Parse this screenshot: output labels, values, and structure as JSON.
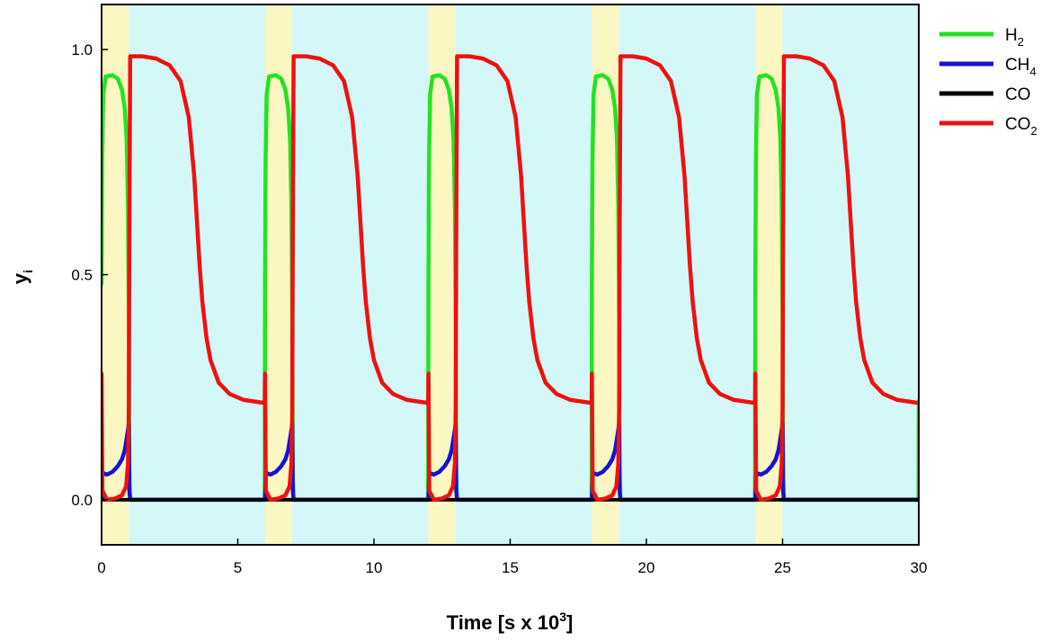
{
  "chart_data": {
    "type": "line",
    "title": "",
    "xlabel": {
      "base": "Time [s x 10",
      "sup": "3",
      "end": "]"
    },
    "ylabel": {
      "base": "y",
      "sub": "i"
    },
    "xlim": [
      0,
      30
    ],
    "ylim": [
      -0.1,
      1.1
    ],
    "x_ticks": [
      0,
      5,
      10,
      15,
      20,
      25,
      30
    ],
    "x_tick_labels": [
      "0",
      "5",
      "10",
      "15",
      "20",
      "25",
      "30"
    ],
    "y_ticks": [
      0.0,
      0.5,
      1.0
    ],
    "y_tick_labels": [
      "0.0",
      "0.5",
      "1.0"
    ],
    "grid": false,
    "legend_position": "right",
    "background_color": "#d4f7f7",
    "highlight_color": "#fbf7c2",
    "highlight_intervals": [
      [
        0,
        1
      ],
      [
        6,
        7
      ],
      [
        12,
        13
      ],
      [
        18,
        19
      ],
      [
        24,
        25
      ]
    ],
    "cycle_period": 6,
    "cycles": 5,
    "series": [
      {
        "name": "H2",
        "label_base": "H",
        "label_sub": "2",
        "color": "#22e322",
        "points": [
          [
            0.0,
            0.48
          ],
          [
            0.02,
            0.75
          ],
          [
            0.06,
            0.9
          ],
          [
            0.15,
            0.94
          ],
          [
            0.4,
            0.943
          ],
          [
            0.6,
            0.935
          ],
          [
            0.75,
            0.91
          ],
          [
            0.85,
            0.87
          ],
          [
            0.92,
            0.8
          ],
          [
            0.97,
            0.65
          ],
          [
            1.0,
            0.4
          ],
          [
            1.02,
            0.05
          ],
          [
            1.05,
            0.0
          ],
          [
            5.99,
            0.0
          ],
          [
            6.0,
            0.22
          ],
          [
            6.02,
            0.75
          ],
          [
            6.06,
            0.9
          ],
          [
            6.15,
            0.94
          ],
          [
            6.4,
            0.943
          ],
          [
            6.6,
            0.935
          ],
          [
            6.75,
            0.91
          ],
          [
            6.85,
            0.87
          ],
          [
            6.92,
            0.8
          ],
          [
            6.97,
            0.65
          ],
          [
            7.0,
            0.4
          ],
          [
            7.02,
            0.05
          ],
          [
            7.05,
            0.0
          ],
          [
            30.0,
            0.0
          ]
        ]
      },
      {
        "name": "CH4",
        "label_base": "CH",
        "label_sub": "4",
        "color": "#1313d6",
        "points": [
          [
            0.0,
            0.0
          ],
          [
            0.03,
            0.06
          ],
          [
            0.2,
            0.056
          ],
          [
            0.4,
            0.062
          ],
          [
            0.6,
            0.075
          ],
          [
            0.75,
            0.09
          ],
          [
            0.85,
            0.11
          ],
          [
            0.93,
            0.14
          ],
          [
            0.98,
            0.16
          ],
          [
            1.0,
            0.17
          ],
          [
            1.02,
            0.02
          ],
          [
            1.05,
            0.0
          ],
          [
            6.0,
            0.0
          ],
          [
            6.03,
            0.06
          ],
          [
            6.2,
            0.056
          ],
          [
            6.4,
            0.062
          ],
          [
            6.6,
            0.075
          ],
          [
            6.75,
            0.09
          ],
          [
            6.85,
            0.11
          ],
          [
            6.93,
            0.14
          ],
          [
            6.98,
            0.16
          ],
          [
            7.0,
            0.17
          ],
          [
            7.02,
            0.02
          ],
          [
            7.05,
            0.0
          ],
          [
            30.0,
            0.0
          ]
        ]
      },
      {
        "name": "CO",
        "label_base": "CO",
        "label_sub": "",
        "color": "#000000",
        "points": [
          [
            0.0,
            0.0
          ],
          [
            30.0,
            0.0
          ]
        ]
      },
      {
        "name": "CO2",
        "label_base": "CO",
        "label_sub": "2",
        "color": "#ee1111",
        "points": [
          [
            0.0,
            0.28
          ],
          [
            0.03,
            0.02
          ],
          [
            0.2,
            0.0
          ],
          [
            0.5,
            0.003
          ],
          [
            0.75,
            0.01
          ],
          [
            0.9,
            0.03
          ],
          [
            0.97,
            0.08
          ],
          [
            1.0,
            0.2
          ],
          [
            1.02,
            0.6
          ],
          [
            1.05,
            0.985
          ],
          [
            1.5,
            0.985
          ],
          [
            2.0,
            0.98
          ],
          [
            2.5,
            0.965
          ],
          [
            2.9,
            0.93
          ],
          [
            3.2,
            0.85
          ],
          [
            3.4,
            0.72
          ],
          [
            3.5,
            0.62
          ],
          [
            3.6,
            0.52
          ],
          [
            3.7,
            0.44
          ],
          [
            3.85,
            0.36
          ],
          [
            4.0,
            0.31
          ],
          [
            4.3,
            0.26
          ],
          [
            4.7,
            0.235
          ],
          [
            5.2,
            0.222
          ],
          [
            5.99,
            0.215
          ],
          [
            6.0,
            0.215
          ],
          [
            30.0,
            0.215
          ]
        ]
      }
    ]
  }
}
